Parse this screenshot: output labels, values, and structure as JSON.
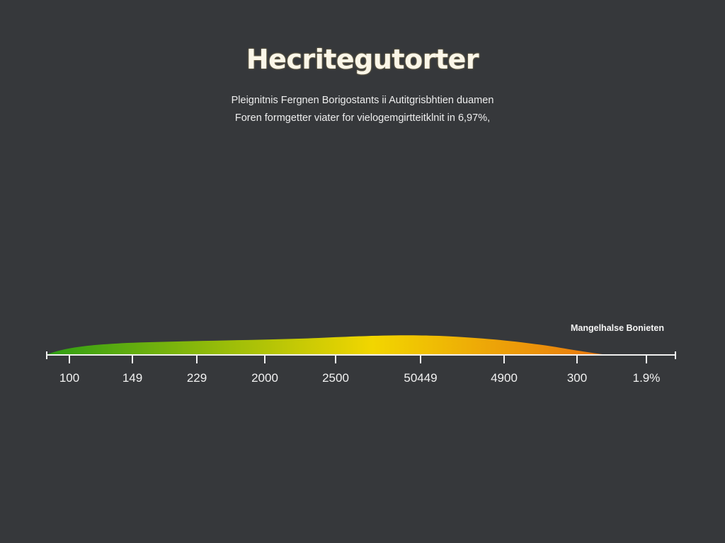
{
  "title": "Hecritegutorter",
  "subtitle_lines": [
    "Pleignitnis Fergnen Borigostants ii Autitgrisbhtien duamen",
    "Foren formgetter viater for vielogemgirtteitklnit in 6,97%,"
  ],
  "chart_data": {
    "type": "area",
    "title": "Hecritegutorter",
    "categories": [
      "100",
      "149",
      "229",
      "2000",
      "2500",
      "50449",
      "4900",
      "300",
      "1.9%"
    ],
    "legend": "Mangelhalse Bonieten",
    "legend_position": "top-right",
    "grid": false,
    "colors": {
      "start": "#2e9e14",
      "middle": "#f2d600",
      "end": "#e8740f",
      "background": "#36383b",
      "axis": "#f0f0f0"
    }
  }
}
